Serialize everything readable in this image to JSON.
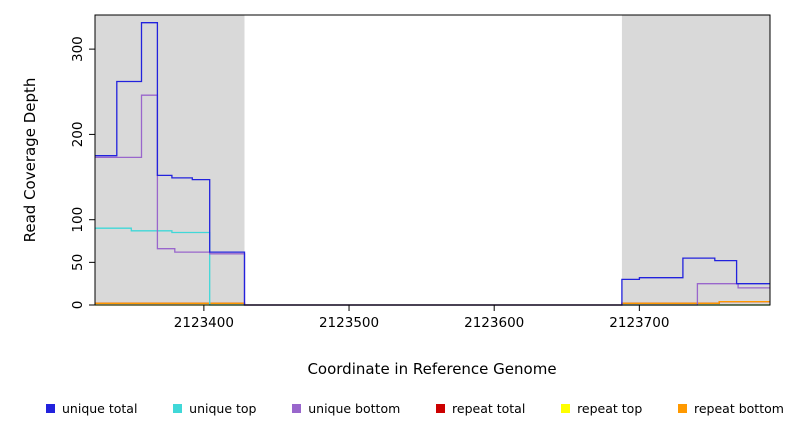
{
  "chart_data": {
    "type": "line",
    "title": "",
    "xlabel": "Coordinate in Reference Genome",
    "ylabel": "Read Coverage Depth",
    "xlim": [
      2123325,
      2123790
    ],
    "ylim": [
      0,
      340
    ],
    "x_ticks": [
      2123400,
      2123500,
      2123600,
      2123700
    ],
    "y_ticks": [
      0,
      50,
      100,
      200,
      300
    ],
    "grid": false,
    "legend_position": "bottom",
    "colors": {
      "shading": "#d9d9d9",
      "box": "#000000",
      "unique_total": "#2222dd",
      "unique_top": "#40d8d8",
      "unique_bottom": "#9966cc",
      "repeat_total": "#cc0000",
      "repeat_top": "#ffff00",
      "repeat_bottom": "#ff9900"
    },
    "shaded_regions": [
      [
        2123325,
        2123428
      ],
      [
        2123688,
        2123790
      ]
    ],
    "series": [
      {
        "name": "repeat top",
        "color": "#ffff00",
        "points": [
          [
            2123325,
            0
          ],
          [
            2123790,
            0
          ]
        ]
      },
      {
        "name": "repeat total",
        "color": "#cc0000",
        "points": [
          [
            2123325,
            2
          ],
          [
            2123428,
            2
          ],
          [
            2123428,
            0
          ],
          [
            2123688,
            0
          ],
          [
            2123688,
            2
          ],
          [
            2123755,
            2
          ],
          [
            2123755,
            4
          ],
          [
            2123790,
            4
          ]
        ]
      },
      {
        "name": "repeat bottom",
        "color": "#ff9900",
        "points": [
          [
            2123325,
            2
          ],
          [
            2123428,
            2
          ],
          [
            2123428,
            0
          ],
          [
            2123688,
            0
          ],
          [
            2123688,
            2
          ],
          [
            2123755,
            2
          ],
          [
            2123755,
            4
          ],
          [
            2123790,
            4
          ]
        ]
      },
      {
        "name": "unique top",
        "color": "#40d8d8",
        "points": [
          [
            2123325,
            90
          ],
          [
            2123350,
            90
          ],
          [
            2123350,
            87
          ],
          [
            2123378,
            87
          ],
          [
            2123378,
            85
          ],
          [
            2123404,
            85
          ],
          [
            2123404,
            0
          ],
          [
            2123790,
            0
          ]
        ]
      },
      {
        "name": "unique bottom",
        "color": "#9966cc",
        "points": [
          [
            2123325,
            173
          ],
          [
            2123357,
            173
          ],
          [
            2123357,
            246
          ],
          [
            2123368,
            246
          ],
          [
            2123368,
            66
          ],
          [
            2123380,
            66
          ],
          [
            2123380,
            62
          ],
          [
            2123404,
            62
          ],
          [
            2123404,
            60
          ],
          [
            2123428,
            60
          ],
          [
            2123428,
            0
          ],
          [
            2123740,
            0
          ],
          [
            2123740,
            25
          ],
          [
            2123768,
            25
          ],
          [
            2123768,
            20
          ],
          [
            2123790,
            20
          ]
        ]
      },
      {
        "name": "unique total",
        "color": "#2222dd",
        "points": [
          [
            2123325,
            175
          ],
          [
            2123340,
            175
          ],
          [
            2123340,
            262
          ],
          [
            2123357,
            262
          ],
          [
            2123357,
            331
          ],
          [
            2123368,
            331
          ],
          [
            2123368,
            152
          ],
          [
            2123378,
            152
          ],
          [
            2123378,
            149
          ],
          [
            2123392,
            149
          ],
          [
            2123392,
            147
          ],
          [
            2123404,
            147
          ],
          [
            2123404,
            62
          ],
          [
            2123428,
            62
          ],
          [
            2123428,
            0
          ],
          [
            2123688,
            0
          ],
          [
            2123688,
            30
          ],
          [
            2123700,
            30
          ],
          [
            2123700,
            32
          ],
          [
            2123730,
            32
          ],
          [
            2123730,
            55
          ],
          [
            2123752,
            55
          ],
          [
            2123752,
            52
          ],
          [
            2123767,
            52
          ],
          [
            2123767,
            25
          ],
          [
            2123790,
            25
          ]
        ]
      }
    ]
  },
  "axes": {
    "x_title": "Coordinate in Reference Genome",
    "y_title": "Read Coverage Depth"
  },
  "legend": {
    "items": [
      {
        "label": "unique total",
        "color": "#2222dd"
      },
      {
        "label": "unique top",
        "color": "#40d8d8"
      },
      {
        "label": "unique bottom",
        "color": "#9966cc"
      },
      {
        "label": "repeat total",
        "color": "#cc0000"
      },
      {
        "label": "repeat top",
        "color": "#ffff00"
      },
      {
        "label": "repeat bottom",
        "color": "#ff9900"
      }
    ]
  }
}
